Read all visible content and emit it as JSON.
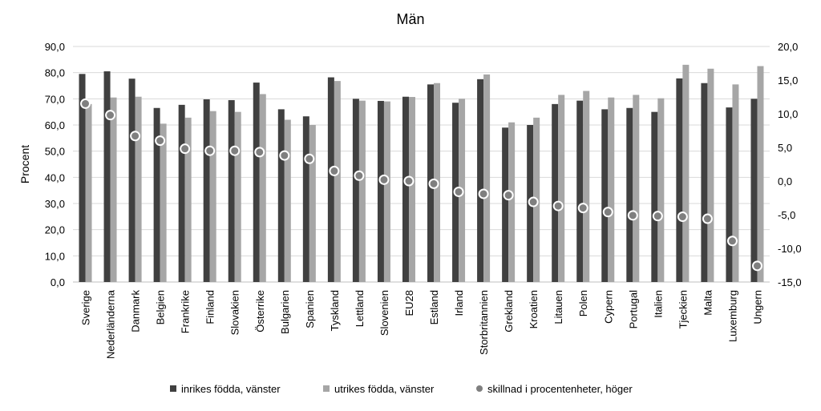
{
  "chart_data": {
    "type": "bar",
    "title": "Män",
    "ylabel": "Procent",
    "y2label": "",
    "ylim": [
      0,
      90
    ],
    "y2lim": [
      -15,
      20
    ],
    "yticks": [
      "0,0",
      "10,0",
      "20,0",
      "30,0",
      "40,0",
      "50,0",
      "60,0",
      "70,0",
      "80,0",
      "90,0"
    ],
    "y2ticks": [
      "-15,0",
      "-10,0",
      "-5,0",
      "0,0",
      "5,0",
      "10,0",
      "15,0",
      "20,0"
    ],
    "grid": true,
    "legend_position": "bottom",
    "categories": [
      "Sverige",
      "Nederländerna",
      "Danmark",
      "Belgien",
      "Frankrike",
      "Finland",
      "Slovakien",
      "Österrike",
      "Bulgarien",
      "Spanien",
      "Tyskland",
      "Lettland",
      "Slovenien",
      "EU28",
      "Estland",
      "Irland",
      "Storbritannien",
      "Grekland",
      "Kroatien",
      "Litauen",
      "Polen",
      "Cypern",
      "Portugal",
      "Italien",
      "Tjeckien",
      "Malta",
      "Luxemburg",
      "Ungern"
    ],
    "series": [
      {
        "name": "inrikes födda, vänster",
        "axis": "left",
        "kind": "bar",
        "color": "#404040",
        "values": [
          79.5,
          80.5,
          77.7,
          66.5,
          67.7,
          69.8,
          69.5,
          76.2,
          66,
          63.3,
          78.2,
          70,
          69.2,
          70.8,
          75.5,
          68.5,
          77.5,
          59,
          60,
          68,
          69.3,
          66,
          66.5,
          65,
          77.8,
          76,
          66.7,
          70
        ]
      },
      {
        "name": "utrikes födda, vänster",
        "axis": "left",
        "kind": "bar",
        "color": "#a6a6a6",
        "values": [
          68,
          70.5,
          70.8,
          60.5,
          62.8,
          65.3,
          65,
          71.8,
          62,
          60,
          76.8,
          69.3,
          69,
          70.7,
          76,
          70,
          79.3,
          61,
          62.8,
          71.5,
          73,
          70.5,
          71.5,
          70.2,
          83,
          81.5,
          75.5,
          82.5
        ]
      },
      {
        "name": "skillnad i procentenheter, höger",
        "axis": "right",
        "kind": "point",
        "color": "#7f7f7f",
        "values": [
          11.5,
          9.8,
          6.7,
          6,
          4.8,
          4.5,
          4.5,
          4.3,
          3.8,
          3.3,
          1.5,
          0.8,
          0.2,
          0,
          -0.4,
          -1.6,
          -1.9,
          -2.1,
          -3.1,
          -3.7,
          -4,
          -4.6,
          -5.1,
          -5.2,
          -5.3,
          -5.6,
          -8.9,
          -12.6
        ]
      }
    ]
  }
}
